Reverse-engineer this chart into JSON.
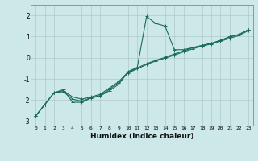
{
  "xlabel": "Humidex (Indice chaleur)",
  "bg_color": "#cce8e8",
  "grid_color": "#b0c8c8",
  "line_color": "#1a6b5a",
  "xlim": [
    -0.5,
    23.5
  ],
  "ylim": [
    -3.2,
    2.5
  ],
  "yticks": [
    -3,
    -2,
    -1,
    0,
    1,
    2
  ],
  "xticks": [
    0,
    1,
    2,
    3,
    4,
    5,
    6,
    7,
    8,
    9,
    10,
    11,
    12,
    13,
    14,
    15,
    16,
    17,
    18,
    19,
    20,
    21,
    22,
    23
  ],
  "line1_x": [
    0,
    1,
    2,
    3,
    4,
    5,
    6,
    7,
    8,
    9,
    10,
    11,
    12,
    13,
    14,
    15,
    16,
    17,
    18,
    19,
    20,
    21,
    22,
    23
  ],
  "line1_y": [
    -2.75,
    -2.2,
    -1.65,
    -1.5,
    -2.1,
    -2.1,
    -1.9,
    -1.8,
    -1.55,
    -1.25,
    -0.65,
    -0.45,
    1.95,
    1.62,
    1.5,
    0.38,
    0.38,
    0.48,
    0.58,
    0.68,
    0.82,
    1.0,
    1.1,
    1.32
  ],
  "line2_x": [
    0,
    1,
    2,
    3,
    4,
    5,
    6,
    7,
    8,
    9,
    10,
    11,
    12,
    13,
    14,
    15,
    16,
    17,
    18,
    19,
    20,
    21,
    22,
    23
  ],
  "line2_y": [
    -2.75,
    -2.2,
    -1.65,
    -1.55,
    -1.85,
    -1.95,
    -1.85,
    -1.72,
    -1.42,
    -1.12,
    -0.68,
    -0.48,
    -0.28,
    -0.12,
    0.02,
    0.18,
    0.32,
    0.48,
    0.58,
    0.68,
    0.82,
    0.98,
    1.1,
    1.32
  ],
  "line3_x": [
    0,
    1,
    2,
    3,
    4,
    5,
    6,
    7,
    8,
    9,
    10,
    11,
    12,
    13,
    14,
    15,
    16,
    17,
    18,
    19,
    20,
    21,
    22,
    23
  ],
  "line3_y": [
    -2.75,
    -2.2,
    -1.65,
    -1.6,
    -1.95,
    -2.05,
    -1.88,
    -1.78,
    -1.48,
    -1.18,
    -0.72,
    -0.52,
    -0.32,
    -0.15,
    -0.02,
    0.12,
    0.28,
    0.42,
    0.55,
    0.65,
    0.78,
    0.92,
    1.05,
    1.28
  ]
}
